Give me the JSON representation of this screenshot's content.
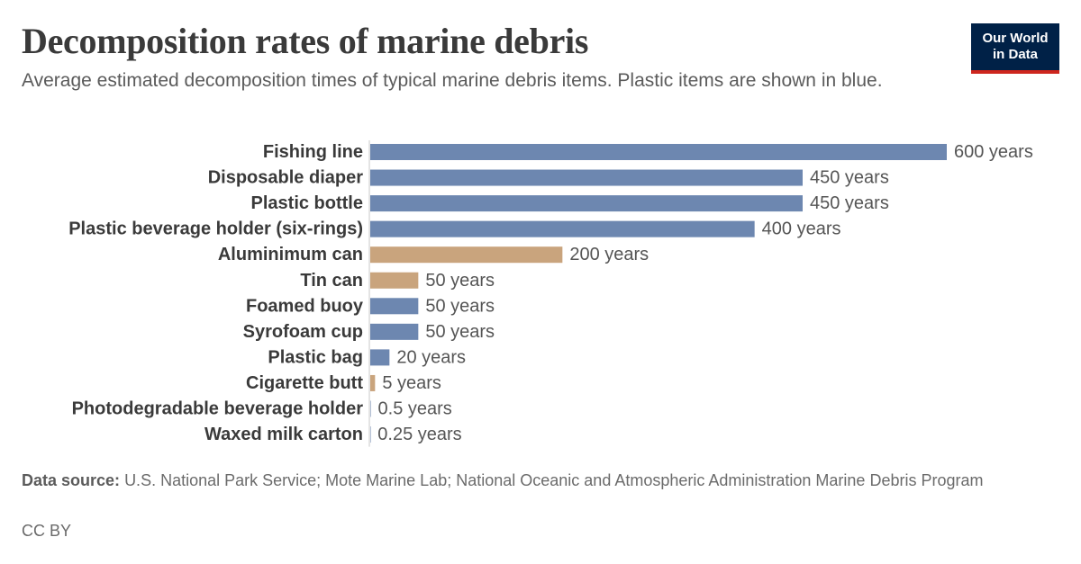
{
  "header": {
    "title": "Decomposition rates of marine debris",
    "subtitle": "Average estimated decomposition times of typical marine debris items. Plastic items are shown in blue.",
    "logo_line1": "Our World",
    "logo_line2": "in Data"
  },
  "colors": {
    "plastic": "#6d87b0",
    "non_plastic": "#c9a47d",
    "logo_bg": "#002147",
    "logo_accent": "#ce261e"
  },
  "chart_data": {
    "type": "bar",
    "orientation": "horizontal",
    "title": "Decomposition rates of marine debris",
    "categories": [
      "Fishing line",
      "Disposable diaper",
      "Plastic bottle",
      "Plastic beverage holder (six-rings)",
      "Aluminimum can",
      "Tin can",
      "Foamed buoy",
      "Syrofoam cup",
      "Plastic bag",
      "Cigarette butt",
      "Photodegradable beverage holder",
      "Waxed milk carton"
    ],
    "values": [
      600,
      450,
      450,
      400,
      200,
      50,
      50,
      50,
      20,
      5,
      0.5,
      0.25
    ],
    "value_labels": [
      "600 years",
      "450 years",
      "450 years",
      "400 years",
      "200 years",
      "50 years",
      "50 years",
      "50 years",
      "20 years",
      "5 years",
      "0.5 years",
      "0.25 years"
    ],
    "groups": [
      "plastic",
      "plastic",
      "plastic",
      "plastic",
      "non_plastic",
      "non_plastic",
      "plastic",
      "plastic",
      "plastic",
      "non_plastic",
      "plastic",
      "plastic"
    ],
    "xlim": [
      0,
      600
    ],
    "grid": false,
    "legend": "none"
  },
  "footer": {
    "source_label": "Data source:",
    "source_text": "U.S. National Park Service; Mote Marine Lab; National Oceanic and Atmospheric Administration Marine Debris Program",
    "license": "CC BY"
  }
}
